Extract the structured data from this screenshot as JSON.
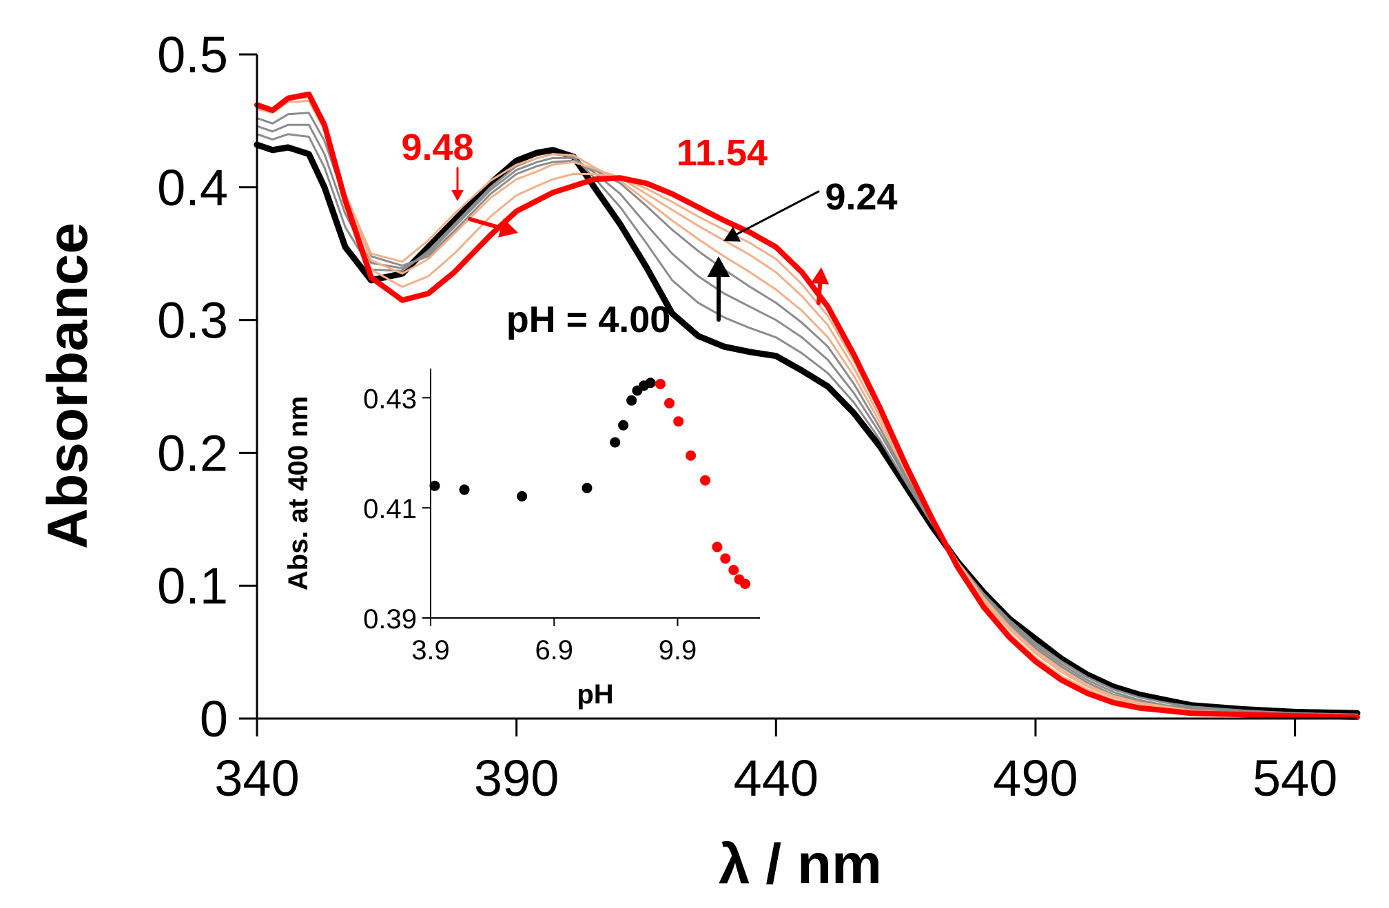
{
  "chart_data": [
    {
      "type": "line",
      "title": "",
      "xlabel": "λ / nm",
      "ylabel": "Absorbance",
      "xlim": [
        340,
        552
      ],
      "ylim": [
        0,
        0.5
      ],
      "xticks": [
        340,
        390,
        440,
        490,
        540
      ],
      "yticks": [
        0,
        0.1,
        0.2,
        0.3,
        0.4,
        0.5
      ],
      "xtick_labels": [
        "340",
        "390",
        "440",
        "490",
        "540"
      ],
      "ytick_labels": [
        "0",
        "0.1",
        "0.2",
        "0.3",
        "0.4",
        "0.5"
      ],
      "grid": false,
      "colors": {
        "low_ph_series": "#000000",
        "intermediate_low": "#8c8c8c",
        "intermediate_high": "#f2b08a",
        "high_ph_series": "#ff0000"
      },
      "x": [
        340,
        343,
        346,
        350,
        353,
        357,
        362,
        368,
        373,
        378,
        385,
        390,
        394,
        397,
        401,
        405,
        410,
        415,
        420,
        425,
        430,
        435,
        440,
        445,
        450,
        455,
        460,
        465,
        470,
        475,
        480,
        485,
        490,
        495,
        500,
        505,
        510,
        515,
        520,
        530,
        540,
        552
      ],
      "series": [
        {
          "values": [
            0.432,
            0.428,
            0.43,
            0.425,
            0.4,
            0.355,
            0.33,
            0.335,
            0.355,
            0.375,
            0.403,
            0.42,
            0.426,
            0.428,
            0.423,
            0.4,
            0.372,
            0.34,
            0.305,
            0.288,
            0.28,
            0.276,
            0.273,
            0.262,
            0.25,
            0.23,
            0.205,
            0.175,
            0.145,
            0.118,
            0.095,
            0.075,
            0.06,
            0.045,
            0.033,
            0.024,
            0.018,
            0.014,
            0.01,
            0.007,
            0.005,
            0.004
          ]
        },
        {
          "values": [
            0.44,
            0.436,
            0.44,
            0.438,
            0.415,
            0.37,
            0.338,
            0.337,
            0.352,
            0.372,
            0.4,
            0.416,
            0.422,
            0.425,
            0.423,
            0.407,
            0.385,
            0.358,
            0.33,
            0.313,
            0.302,
            0.294,
            0.287,
            0.275,
            0.26,
            0.238,
            0.21,
            0.178,
            0.147,
            0.118,
            0.094,
            0.074,
            0.057,
            0.043,
            0.031,
            0.022,
            0.016,
            0.012,
            0.009,
            0.006,
            0.004,
            0.003
          ]
        },
        {
          "values": [
            0.446,
            0.442,
            0.447,
            0.447,
            0.425,
            0.38,
            0.343,
            0.339,
            0.35,
            0.37,
            0.398,
            0.413,
            0.419,
            0.422,
            0.422,
            0.411,
            0.395,
            0.372,
            0.35,
            0.333,
            0.32,
            0.31,
            0.3,
            0.287,
            0.27,
            0.245,
            0.215,
            0.181,
            0.149,
            0.118,
            0.093,
            0.072,
            0.055,
            0.041,
            0.029,
            0.02,
            0.014,
            0.01,
            0.008,
            0.005,
            0.004,
            0.003
          ]
        },
        {
          "values": [
            0.452,
            0.448,
            0.455,
            0.456,
            0.435,
            0.39,
            0.348,
            0.341,
            0.348,
            0.367,
            0.395,
            0.41,
            0.416,
            0.419,
            0.42,
            0.413,
            0.403,
            0.386,
            0.368,
            0.352,
            0.338,
            0.325,
            0.313,
            0.298,
            0.28,
            0.252,
            0.219,
            0.183,
            0.15,
            0.118,
            0.092,
            0.07,
            0.053,
            0.039,
            0.027,
            0.018,
            0.013,
            0.009,
            0.007,
            0.005,
            0.003,
            0.002
          ]
        },
        {
          "values": [
            0.459,
            0.456,
            0.464,
            0.465,
            0.443,
            0.395,
            0.35,
            0.344,
            0.36,
            0.38,
            0.405,
            0.417,
            0.422,
            0.425,
            0.424,
            0.415,
            0.405,
            0.39,
            0.375,
            0.361,
            0.348,
            0.336,
            0.323,
            0.307,
            0.287,
            0.258,
            0.223,
            0.186,
            0.151,
            0.118,
            0.091,
            0.069,
            0.051,
            0.037,
            0.025,
            0.017,
            0.012,
            0.009,
            0.006,
            0.004,
            0.003,
            0.002
          ]
        },
        {
          "values": [
            0.461,
            0.457,
            0.466,
            0.468,
            0.445,
            0.395,
            0.345,
            0.335,
            0.346,
            0.365,
            0.392,
            0.406,
            0.412,
            0.417,
            0.419,
            0.414,
            0.407,
            0.395,
            0.383,
            0.371,
            0.36,
            0.349,
            0.336,
            0.318,
            0.296,
            0.264,
            0.227,
            0.188,
            0.151,
            0.117,
            0.089,
            0.067,
            0.049,
            0.035,
            0.024,
            0.016,
            0.011,
            0.008,
            0.006,
            0.004,
            0.003,
            0.002
          ]
        },
        {
          "values": [
            0.462,
            0.458,
            0.467,
            0.47,
            0.447,
            0.393,
            0.338,
            0.325,
            0.333,
            0.35,
            0.378,
            0.394,
            0.401,
            0.406,
            0.41,
            0.41,
            0.407,
            0.399,
            0.389,
            0.378,
            0.368,
            0.358,
            0.346,
            0.327,
            0.303,
            0.269,
            0.231,
            0.19,
            0.151,
            0.116,
            0.087,
            0.064,
            0.046,
            0.032,
            0.022,
            0.014,
            0.01,
            0.007,
            0.005,
            0.003,
            0.002,
            0.002
          ]
        },
        {
          "values": [
            0.462,
            0.458,
            0.467,
            0.47,
            0.447,
            0.39,
            0.332,
            0.315,
            0.32,
            0.336,
            0.364,
            0.382,
            0.39,
            0.396,
            0.401,
            0.406,
            0.407,
            0.403,
            0.395,
            0.385,
            0.375,
            0.366,
            0.355,
            0.336,
            0.31,
            0.274,
            0.234,
            0.191,
            0.151,
            0.114,
            0.084,
            0.061,
            0.043,
            0.029,
            0.019,
            0.012,
            0.008,
            0.006,
            0.004,
            0.003,
            0.002,
            0.001
          ]
        }
      ],
      "annotations": [
        {
          "text": "9.48",
          "color": "#ff0000"
        },
        {
          "text": "11.54",
          "color": "#ff0000"
        },
        {
          "text": "9.24",
          "color": "#000000"
        },
        {
          "text": "pH = 4.00",
          "color": "#000000"
        }
      ]
    },
    {
      "type": "scatter",
      "title": "",
      "xlabel": "pH",
      "ylabel": "Abs. at 400 nm",
      "xlim": [
        3.9,
        11.9
      ],
      "ylim": [
        0.39,
        0.4353
      ],
      "xticks": [
        3.9,
        6.9,
        9.9
      ],
      "yticks": [
        0.39,
        0.41,
        0.43
      ],
      "xtick_labels": [
        "3.9",
        "6.9",
        "9.9"
      ],
      "ytick_labels": [
        "0.39",
        "0.41",
        "0.43"
      ],
      "grid": false,
      "series": [
        {
          "color": "#000000",
          "x": [
            4.0,
            4.72,
            6.12,
            7.7,
            8.38,
            8.58,
            8.78,
            8.92,
            9.08,
            9.24
          ],
          "y": [
            0.414,
            0.4133,
            0.4121,
            0.4136,
            0.4219,
            0.425,
            0.4295,
            0.4313,
            0.4322,
            0.4327
          ]
        },
        {
          "color": "#ff0000",
          "x": [
            9.48,
            9.7,
            9.92,
            10.22,
            10.57,
            10.86,
            11.06,
            11.26,
            11.4,
            11.54
          ],
          "y": [
            0.4325,
            0.429,
            0.4257,
            0.4195,
            0.415,
            0.4029,
            0.4008,
            0.3987,
            0.397,
            0.3962
          ]
        }
      ]
    }
  ]
}
